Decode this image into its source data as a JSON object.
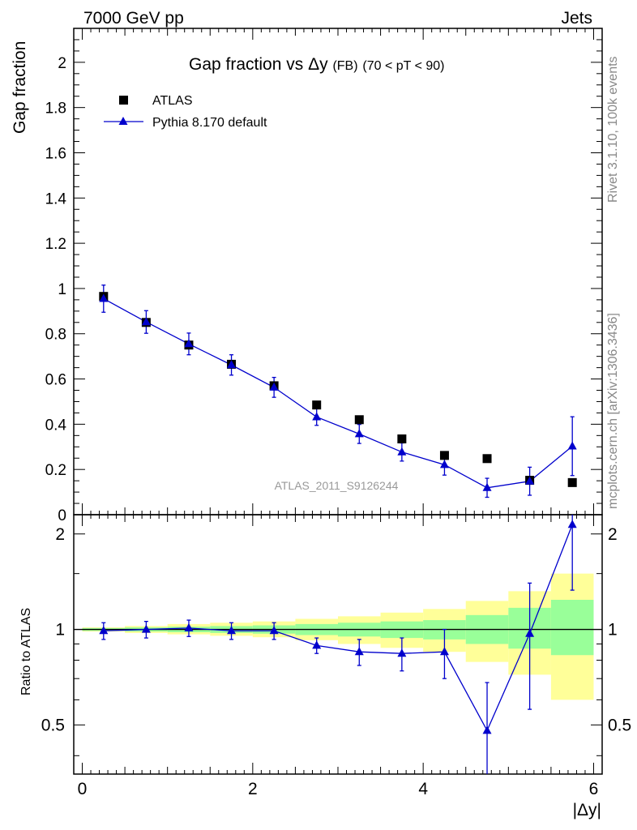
{
  "header": {
    "left_label": "7000 GeV pp",
    "right_label": "Jets"
  },
  "side_labels": {
    "rivet": "Rivet 3.1.10,  100k events",
    "mcplots": "mcplots.cern.ch [arXiv:1306.3436]"
  },
  "chart_data": [
    {
      "type": "scatter",
      "title_main": "Gap fraction vs",
      "title_var": "Δy",
      "title_tag": "(FB)",
      "title_range": "(70 < pT <  90)",
      "ylabel": "Gap fraction",
      "watermark": "ATLAS_2011_S9126244",
      "xlim": [
        -0.1,
        6.1
      ],
      "ylim": [
        0,
        2.15
      ],
      "yticks": [
        0,
        0.2,
        0.4,
        0.6,
        0.8,
        1,
        1.2,
        1.4,
        1.6,
        1.8,
        2
      ],
      "ytick_labels": [
        "0",
        "0.2",
        "0.4",
        "0.6",
        "0.8",
        "1",
        "1.2",
        "1.4",
        "1.6",
        "1.8",
        "2"
      ],
      "x": [
        0.25,
        0.75,
        1.25,
        1.75,
        2.25,
        2.75,
        3.25,
        3.75,
        4.25,
        4.75,
        5.25,
        5.75
      ],
      "series": [
        {
          "name": "ATLAS",
          "marker": "square",
          "color": "#000000",
          "values": [
            0.965,
            0.85,
            0.75,
            0.665,
            0.57,
            0.485,
            0.42,
            0.335,
            0.262,
            0.248,
            0.152,
            0.142
          ]
        },
        {
          "name": "Pythia 8.170 default",
          "marker": "triangle",
          "color": "#0000cc",
          "values": [
            0.955,
            0.852,
            0.755,
            0.662,
            0.563,
            0.432,
            0.357,
            0.277,
            0.221,
            0.119,
            0.148,
            0.303
          ],
          "err": [
            0.06,
            0.05,
            0.048,
            0.045,
            0.044,
            0.037,
            0.042,
            0.04,
            0.046,
            0.042,
            0.062,
            0.13
          ]
        }
      ]
    },
    {
      "type": "scatter",
      "ylabel": "Ratio to ATLAS",
      "xlabel": "|Δy|",
      "xlim": [
        -0.1,
        6.1
      ],
      "ylim": [
        0.35,
        2.3
      ],
      "xticks": [
        0,
        2,
        4,
        6
      ],
      "xtick_labels": [
        "0",
        "2",
        "4",
        "6"
      ],
      "yticks": [
        0.5,
        1,
        2
      ],
      "ytick_labels": [
        "0.5",
        "1",
        "2"
      ],
      "x": [
        0.25,
        0.75,
        1.25,
        1.75,
        2.25,
        2.75,
        3.25,
        3.75,
        4.25,
        4.75,
        5.25,
        5.75
      ],
      "bin_edges": [
        0,
        0.5,
        1,
        1.5,
        2,
        2.5,
        3,
        3.5,
        4,
        4.5,
        5,
        5.5,
        6
      ],
      "band_colors": {
        "inner": "#99ff99",
        "outer": "#ffff99"
      },
      "inner_band": {
        "lo": [
          0.99,
          0.985,
          0.98,
          0.975,
          0.97,
          0.96,
          0.95,
          0.94,
          0.93,
          0.9,
          0.87,
          0.83
        ],
        "hi": [
          1.01,
          1.015,
          1.02,
          1.025,
          1.03,
          1.04,
          1.05,
          1.06,
          1.07,
          1.11,
          1.17,
          1.24
        ]
      },
      "outer_band": {
        "lo": [
          0.985,
          0.975,
          0.965,
          0.955,
          0.945,
          0.925,
          0.9,
          0.875,
          0.85,
          0.79,
          0.72,
          0.6
        ],
        "hi": [
          1.015,
          1.025,
          1.04,
          1.05,
          1.06,
          1.08,
          1.1,
          1.13,
          1.16,
          1.23,
          1.32,
          1.5
        ]
      },
      "series": [
        {
          "name": "Pythia 8.170 default",
          "marker": "triangle",
          "color": "#0000cc",
          "values": [
            0.99,
            1.0,
            1.01,
            0.99,
            0.99,
            0.89,
            0.85,
            0.84,
            0.85,
            0.48,
            0.97,
            2.14
          ],
          "err_lo": [
            0.06,
            0.06,
            0.06,
            0.06,
            0.06,
            0.05,
            0.08,
            0.1,
            0.15,
            0.13,
            0.41,
            0.81
          ],
          "err_hi": [
            0.06,
            0.06,
            0.06,
            0.06,
            0.06,
            0.05,
            0.08,
            0.1,
            0.15,
            0.2,
            0.43,
            0.81
          ]
        }
      ]
    }
  ]
}
